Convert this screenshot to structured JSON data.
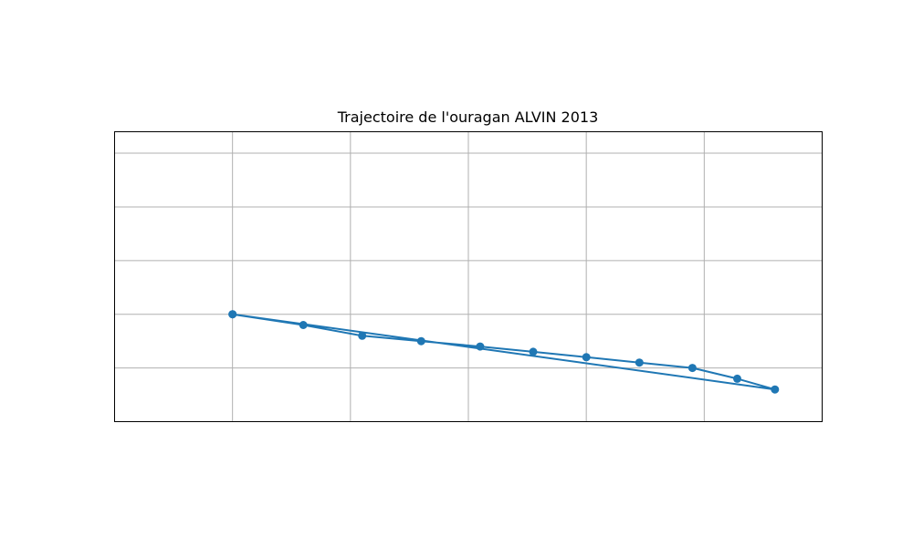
{
  "chart_data": {
    "type": "line",
    "title": "Trajectoire de l'ouragan ALVIN 2013",
    "xlabel": "",
    "ylabel": "",
    "grid": true,
    "xlim": [
      -123,
      -117
    ],
    "ylim": [
      16,
      18.7
    ],
    "series": [
      {
        "color": "#1f77b4",
        "marker": "circle",
        "x": [
          -122.0,
          -121.4,
          -120.9,
          -120.4,
          -119.9,
          -119.45,
          -119.0,
          -118.55,
          -118.1,
          -117.72,
          -117.4,
          -122.0
        ],
        "y": [
          17.0,
          16.9,
          16.8,
          16.75,
          16.7,
          16.65,
          16.6,
          16.55,
          16.5,
          16.4,
          16.3,
          17.0
        ]
      }
    ]
  }
}
